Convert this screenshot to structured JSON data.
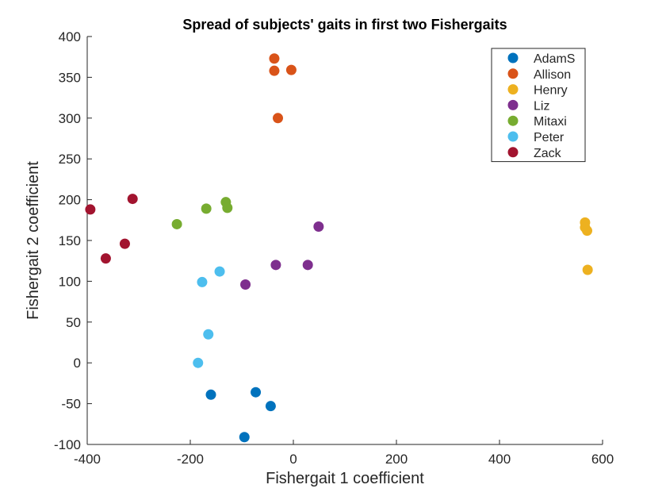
{
  "chart_data": {
    "type": "scatter",
    "title": "Spread of subjects' gaits in first two Fishergaits",
    "xlabel": "Fishergait 1 coefficient",
    "ylabel": "Fishergait 2 coefficient",
    "xlim": [
      -400,
      600
    ],
    "ylim": [
      -100,
      400
    ],
    "xticks": [
      -400,
      -200,
      0,
      200,
      400,
      600
    ],
    "yticks": [
      -100,
      -50,
      0,
      50,
      100,
      150,
      200,
      250,
      300,
      350,
      400
    ],
    "grid": false,
    "legend_position": "top-right",
    "series": [
      {
        "name": "AdamS",
        "color": "#0072BD",
        "points": [
          [
            -160,
            -39
          ],
          [
            -73,
            -36
          ],
          [
            -44,
            -53
          ],
          [
            -95,
            -91
          ]
        ]
      },
      {
        "name": "Allison",
        "color": "#D95319",
        "points": [
          [
            -37,
            373
          ],
          [
            -37,
            358
          ],
          [
            -4,
            359
          ],
          [
            -30,
            300
          ]
        ]
      },
      {
        "name": "Henry",
        "color": "#EDB120",
        "points": [
          [
            566,
            172
          ],
          [
            566,
            166
          ],
          [
            570,
            162
          ],
          [
            571,
            114
          ]
        ]
      },
      {
        "name": "Liz",
        "color": "#7E2F8E",
        "points": [
          [
            49,
            167
          ],
          [
            -34,
            120
          ],
          [
            28,
            120
          ],
          [
            -93,
            96
          ]
        ]
      },
      {
        "name": "Mitaxi",
        "color": "#77AC30",
        "points": [
          [
            -131,
            197
          ],
          [
            -169,
            189
          ],
          [
            -128,
            190
          ],
          [
            -226,
            170
          ]
        ]
      },
      {
        "name": "Peter",
        "color": "#4DBEEE",
        "points": [
          [
            -143,
            112
          ],
          [
            -177,
            99
          ],
          [
            -165,
            35
          ],
          [
            -185,
            0
          ]
        ]
      },
      {
        "name": "Zack",
        "color": "#A2142F",
        "points": [
          [
            -312,
            201
          ],
          [
            -394,
            188
          ],
          [
            -327,
            146
          ],
          [
            -364,
            128
          ]
        ]
      }
    ]
  }
}
